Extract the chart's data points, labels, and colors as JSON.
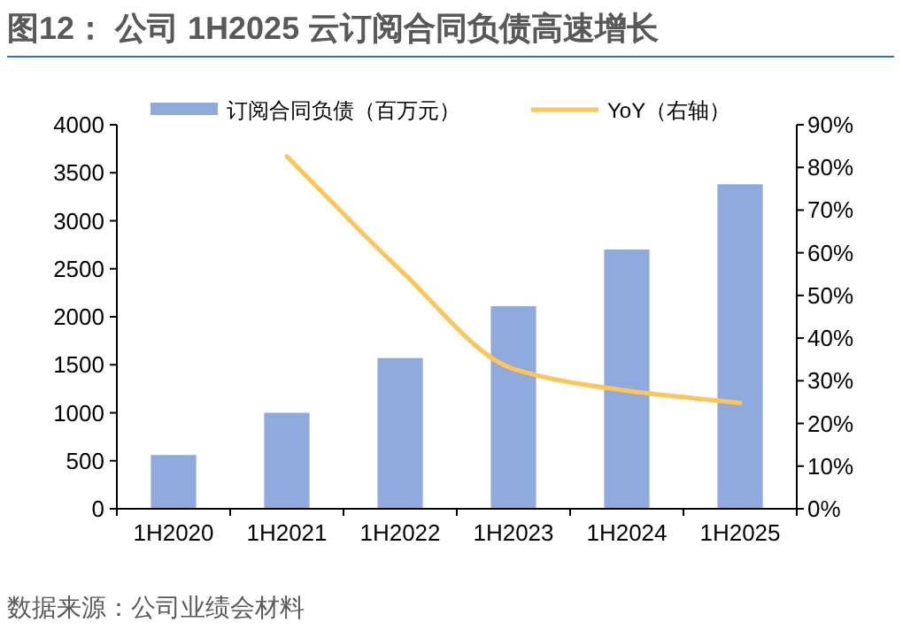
{
  "chart_data": {
    "type": "bar",
    "title": "图12：   公司 1H2025 云订阅合同负债高速增长",
    "categories": [
      "1H2020",
      "1H2021",
      "1H2022",
      "1H2023",
      "1H2024",
      "1H2025"
    ],
    "series": [
      {
        "name": "订阅合同负债（百万元）",
        "color": "#8faadc",
        "values": [
          560,
          1000,
          1570,
          2110,
          2700,
          3380
        ]
      },
      {
        "name": "YoY（右轴）",
        "type": "line",
        "axis": "y2",
        "color": "#ffc559",
        "values": [
          null,
          82.6,
          56,
          32.8,
          27.7,
          24.8
        ]
      }
    ],
    "ylim": [
      0,
      4000
    ],
    "yticks": [
      0,
      500,
      1000,
      1500,
      2000,
      2500,
      3000,
      3500,
      4000
    ],
    "y2lim": [
      0,
      90
    ],
    "y2ticks": [
      {
        "value": 0,
        "label": "0%"
      },
      {
        "value": 10,
        "label": "10%"
      },
      {
        "value": 20,
        "label": "20%"
      },
      {
        "value": 30,
        "label": "30%"
      },
      {
        "value": 40,
        "label": "40%"
      },
      {
        "value": 50,
        "label": "50%"
      },
      {
        "value": 60,
        "label": "60%"
      },
      {
        "value": 70,
        "label": "70%"
      },
      {
        "value": 80,
        "label": "80%"
      },
      {
        "value": 90,
        "label": "90%"
      }
    ],
    "legend": "top",
    "grid": false,
    "marker": "none",
    "line_style": "solid",
    "annotations": [
      "数据来源：公司业绩会材料"
    ]
  }
}
